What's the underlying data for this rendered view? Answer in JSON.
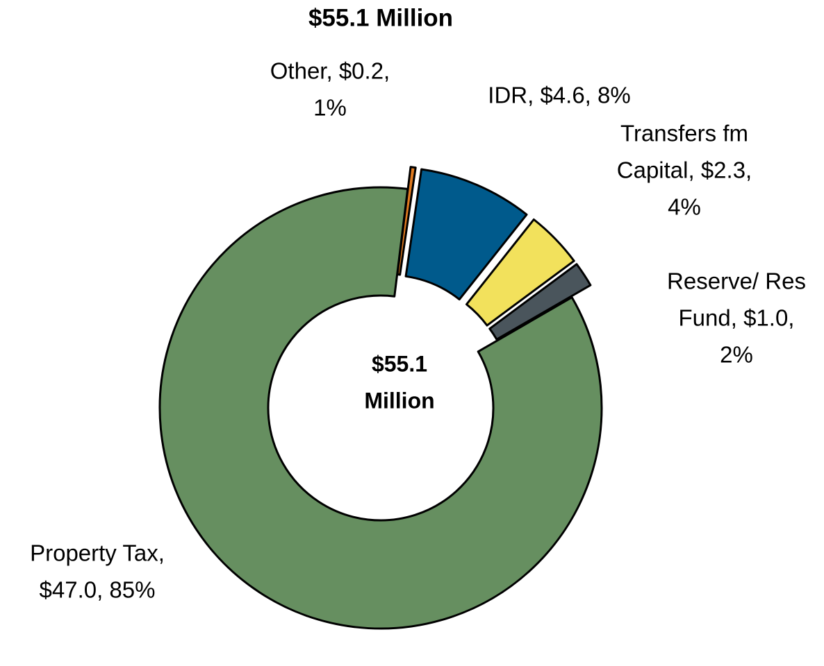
{
  "chart_data": {
    "type": "donut",
    "title": "$55.1 Million",
    "center_label": [
      "$55.1",
      "Million"
    ],
    "categories": [
      "Other",
      "IDR",
      "Transfers fm Capital",
      "Reserve/ Res Fund",
      "Property Tax"
    ],
    "values": [
      0.2,
      4.6,
      2.3,
      1.0,
      47.0
    ],
    "value_labels": [
      [
        "Other, $0.2,",
        "1%"
      ],
      [
        "IDR, $4.6, 8%"
      ],
      [
        "Transfers fm",
        "Capital, $2.3,",
        "4%"
      ],
      [
        "Reserve/ Res",
        "Fund, $1.0,",
        "2%"
      ],
      [
        "Property Tax,",
        "$47.0, 85%"
      ]
    ],
    "colors": [
      "#e07b20",
      "#005a8c",
      "#f2e15c",
      "#4a555c",
      "#668f60"
    ]
  }
}
